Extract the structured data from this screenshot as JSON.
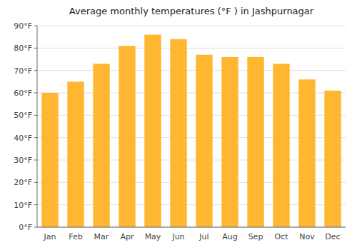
{
  "chart_data": {
    "type": "bar",
    "title": "Average monthly temperatures (°F ) in Jashpurnagar",
    "categories": [
      "Jan",
      "Feb",
      "Mar",
      "Apr",
      "May",
      "Jun",
      "Jul",
      "Aug",
      "Sep",
      "Oct",
      "Nov",
      "Dec"
    ],
    "values": [
      60,
      65,
      73,
      81,
      86,
      84,
      77,
      76,
      76,
      73,
      66,
      61
    ],
    "color": "#FFB732",
    "ylim": [
      0,
      90
    ],
    "yticks": [
      {
        "value": 0,
        "label": "0°F"
      },
      {
        "value": 10,
        "label": "10°F"
      },
      {
        "value": 20,
        "label": "20°F"
      },
      {
        "value": 30,
        "label": "30°F"
      },
      {
        "value": 40,
        "label": "40°F"
      },
      {
        "value": 50,
        "label": "50°F"
      },
      {
        "value": 60,
        "label": "60°F"
      },
      {
        "value": 70,
        "label": "70°F"
      },
      {
        "value": 80,
        "label": "80°F"
      },
      {
        "value": 90,
        "label": "90°F"
      }
    ],
    "grid": true
  }
}
